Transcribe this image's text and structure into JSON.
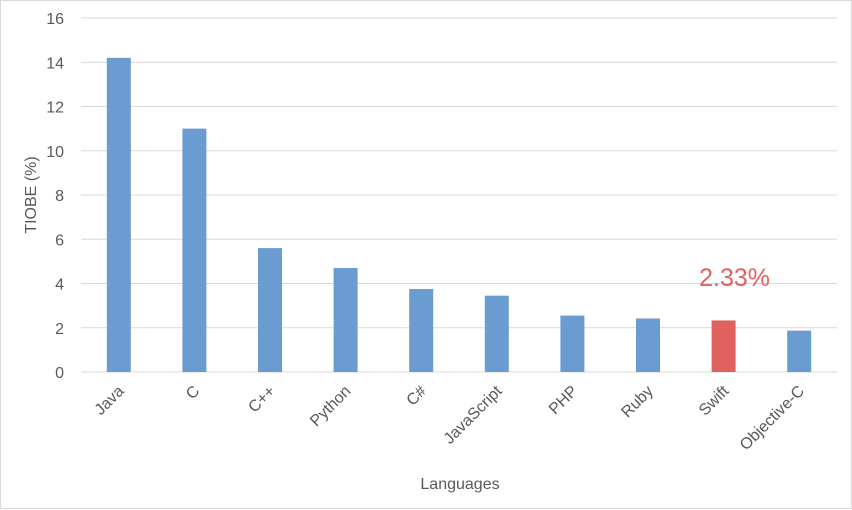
{
  "chart_data": {
    "type": "bar",
    "categories": [
      "Java",
      "C",
      "C++",
      "Python",
      "C#",
      "JavaScript",
      "PHP",
      "Ruby",
      "Swift",
      "Objective-C"
    ],
    "values": [
      14.2,
      11.0,
      5.6,
      4.7,
      3.75,
      3.45,
      2.55,
      2.42,
      2.33,
      1.87
    ],
    "xlabel": "Languages",
    "ylabel": "TIOBE (%)",
    "ylim": [
      0,
      16
    ],
    "yticks": [
      0,
      2,
      4,
      6,
      8,
      10,
      12,
      14,
      16
    ],
    "grid": true,
    "legend": "none",
    "highlight": {
      "category": "Swift",
      "label": "2.33%"
    },
    "colors": {
      "bar": "#6a9bd1",
      "highlight": "#e0625f",
      "annotation": "#e0625f",
      "grid": "#d9d9d9",
      "text": "#595959"
    }
  }
}
